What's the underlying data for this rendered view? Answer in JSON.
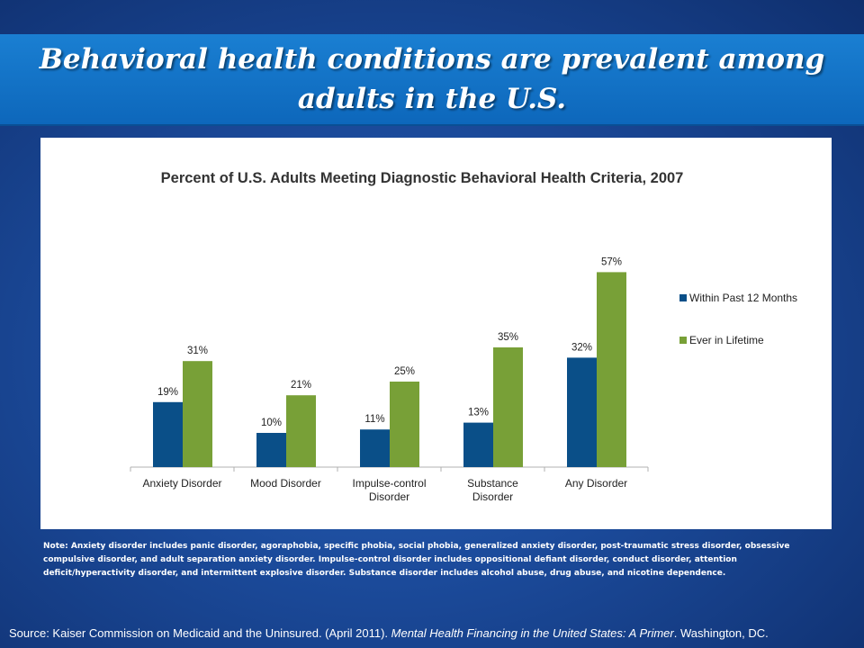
{
  "slide": {
    "title": "Behavioral health conditions are prevalent among adults in the U.S.",
    "note": "Note: Anxiety disorder includes panic disorder, agoraphobia, specific phobia, social phobia, generalized anxiety disorder, post-traumatic stress disorder, obsessive compulsive disorder, and adult separation anxiety disorder. Impulse-control disorder includes oppositional defiant disorder, conduct disorder, attention deficit/hyperactivity disorder, and intermittent explosive disorder. Substance disorder includes alcohol abuse, drug abuse, and nicotine dependence.",
    "source_prefix": "Source: Kaiser Commission on Medicaid and the Uninsured. (April 2011). ",
    "source_title": "Mental Health Financing in the United States: A Primer",
    "source_suffix": ". Washington, DC."
  },
  "colors": {
    "within_12_months": "#0a4f88",
    "ever_in_lifetime": "#78a037",
    "axis": "#b0b0b0",
    "text": "#222222",
    "title_text": "#333333"
  },
  "chart_data": {
    "type": "bar",
    "title": "Percent of U.S. Adults Meeting Diagnostic Behavioral Health Criteria, 2007",
    "categories": [
      "Anxiety Disorder",
      "Mood Disorder",
      "Impulse-control Disorder",
      "Substance Disorder",
      "Any Disorder"
    ],
    "category_lines": [
      [
        "Anxiety Disorder"
      ],
      [
        "Mood Disorder"
      ],
      [
        "Impulse-control",
        "Disorder"
      ],
      [
        "Substance",
        "Disorder"
      ],
      [
        "Any Disorder"
      ]
    ],
    "series": [
      {
        "name": "Within Past 12 Months",
        "values": [
          19,
          10,
          11,
          13,
          32
        ],
        "labels": [
          "19%",
          "10%",
          "11%",
          "13%",
          "32%"
        ]
      },
      {
        "name": "Ever in Lifetime",
        "values": [
          31,
          21,
          25,
          35,
          57
        ],
        "labels": [
          "31%",
          "21%",
          "25%",
          "35%",
          "57%"
        ]
      }
    ],
    "ylim": [
      0,
      60
    ],
    "grid": false,
    "legend_position": "right"
  }
}
